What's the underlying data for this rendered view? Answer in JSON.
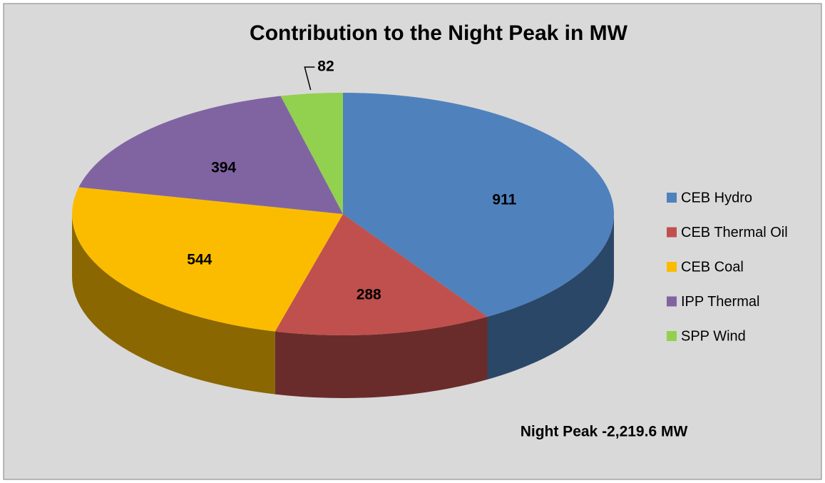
{
  "chart_data": {
    "type": "pie3d",
    "title": "Contribution to the Night Peak  in MW",
    "categories": [
      "CEB Hydro",
      "CEB Thermal Oil",
      "CEB Coal",
      "IPP Thermal",
      "SPP Wind"
    ],
    "values": [
      911,
      288,
      544,
      394,
      82
    ],
    "colors": [
      "#4f81bd",
      "#c0504d",
      "#fbbc00",
      "#8064a2",
      "#92d050"
    ],
    "annotation": "Night Peak -2,219.6 MW",
    "legend": "right"
  }
}
